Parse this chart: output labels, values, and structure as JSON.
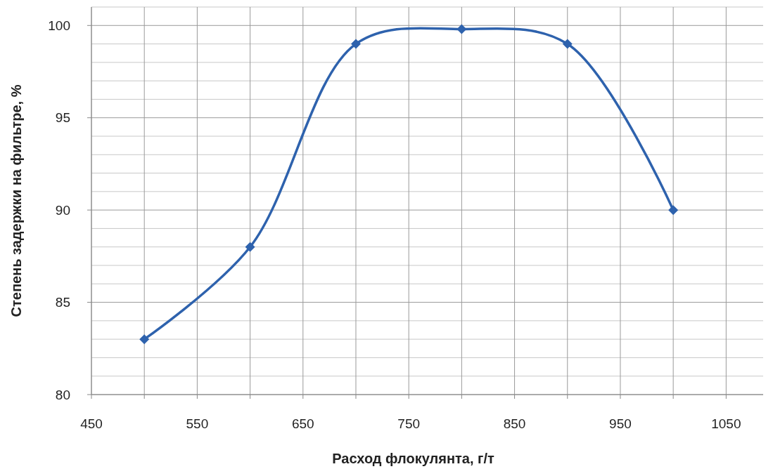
{
  "chart_data": {
    "type": "line",
    "xlabel": "Расход флокулянта, г/т",
    "ylabel": "Степень задержки на фильтре, %",
    "x": [
      500,
      600,
      700,
      800,
      900,
      1000
    ],
    "series": [
      {
        "color": "#2e62ad",
        "values": [
          83,
          88,
          99,
          99.8,
          99,
          90
        ]
      }
    ],
    "xlim": [
      450,
      1085
    ],
    "ylim": [
      80,
      101
    ],
    "xticks": [
      450,
      {
        "value": 500,
        "label": null
      },
      550,
      {
        "value": 600,
        "label": null
      },
      650,
      {
        "value": 700,
        "label": null
      },
      750,
      {
        "value": 800,
        "label": null
      },
      850,
      {
        "value": 900,
        "label": null
      },
      950,
      {
        "value": 1000,
        "label": null
      },
      1050
    ],
    "yticks": [
      80,
      {
        "value": 81,
        "label": null
      },
      {
        "value": 82,
        "label": null
      },
      {
        "value": 83,
        "label": null
      },
      {
        "value": 84,
        "label": null
      },
      85,
      {
        "value": 86,
        "label": null
      },
      {
        "value": 87,
        "label": null
      },
      {
        "value": 88,
        "label": null
      },
      {
        "value": 89,
        "label": null
      },
      90,
      {
        "value": 91,
        "label": null
      },
      {
        "value": 92,
        "label": null
      },
      {
        "value": 93,
        "label": null
      },
      {
        "value": 94,
        "label": null
      },
      95,
      {
        "value": 96,
        "label": null
      },
      {
        "value": 97,
        "label": null
      },
      {
        "value": 98,
        "label": null
      },
      {
        "value": 99,
        "label": null
      },
      100,
      {
        "value": 101,
        "label": null
      }
    ],
    "grid": true,
    "marker": "diamond",
    "line_style": "solid"
  }
}
